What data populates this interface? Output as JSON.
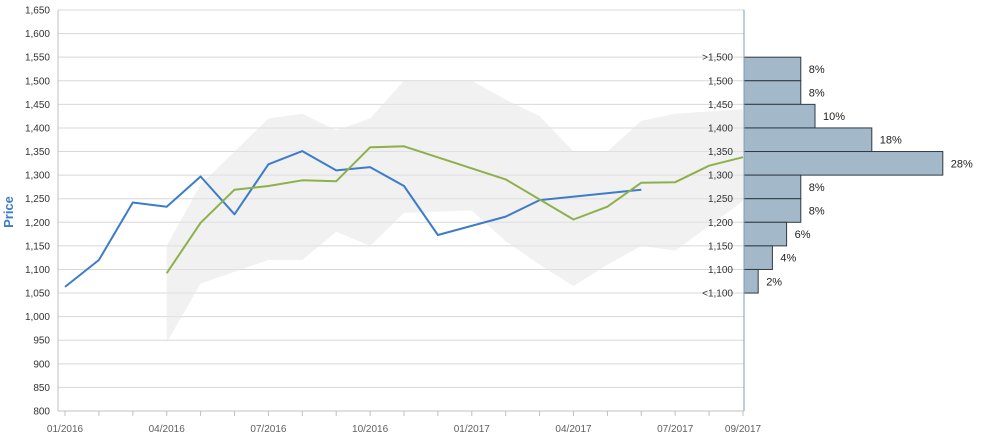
{
  "chart_data": {
    "type": "line",
    "ylabel": "Price",
    "ylim": [
      800,
      1650
    ],
    "y_ticks": [
      "800",
      "850",
      "900",
      "950",
      "1,000",
      "1,050",
      "1,100",
      "1,150",
      "1,200",
      "1,250",
      "1,300",
      "1,350",
      "1,400",
      "1,450",
      "1,500",
      "1,550",
      "1,600",
      "1,650"
    ],
    "x_tick_labels": [
      "01/2016",
      "04/2016",
      "07/2016",
      "10/2016",
      "01/2017",
      "04/2017",
      "07/2017",
      "09/2017"
    ],
    "x_range": [
      "2016-01",
      "2017-09"
    ],
    "grid": true,
    "colors": {
      "series_blue": "#3d7cc9",
      "series_green": "#8db04a",
      "band": "#e6e6e6",
      "histogram": "#a3b8c8",
      "axis_label": "#3d7cc9"
    },
    "band": {
      "x": [
        "2016-04",
        "2016-05",
        "2016-07",
        "2016-08",
        "2016-09",
        "2016-10",
        "2016-11",
        "2017-01",
        "2017-02",
        "2017-03",
        "2017-04",
        "2017-05",
        "2017-06",
        "2017-07",
        "2017-09"
      ],
      "low": [
        945,
        1070,
        1120,
        1120,
        1180,
        1150,
        1220,
        1225,
        1160,
        1110,
        1065,
        1110,
        1150,
        1140,
        1245
      ],
      "high": [
        1150,
        1280,
        1420,
        1430,
        1395,
        1420,
        1500,
        1500,
        1460,
        1425,
        1350,
        1350,
        1415,
        1430,
        1440
      ]
    },
    "series": [
      {
        "x": [
          "2016-01",
          "2016-02",
          "2016-03",
          "2016-04",
          "2016-05",
          "2016-06",
          "2016-07",
          "2016-08",
          "2016-09",
          "2016-10",
          "2016-11",
          "2016-12",
          "2017-02",
          "2017-03",
          "2017-06"
        ],
        "values": [
          1063,
          1120,
          1242,
          1233,
          1297,
          1217,
          1323,
          1351,
          1310,
          1317,
          1277,
          1173,
          1212,
          1247,
          1269
        ]
      },
      {
        "x": [
          "2016-04",
          "2016-05",
          "2016-06",
          "2016-07",
          "2016-08",
          "2016-09",
          "2016-10",
          "2016-11",
          "2017-02",
          "2017-04",
          "2017-05",
          "2017-06",
          "2017-07",
          "2017-08",
          "2017-09"
        ],
        "values": [
          1092,
          1199,
          1269,
          1277,
          1289,
          1287,
          1359,
          1361,
          1291,
          1206,
          1233,
          1284,
          1285,
          1320,
          1338
        ]
      }
    ],
    "histogram": {
      "categories": [
        ">1,500",
        "1,500",
        "1,450",
        "1,400",
        "1,350",
        "1,300",
        "1,250",
        "1,200",
        "1,150",
        "1,100",
        "<1,100"
      ],
      "values": [
        8,
        8,
        10,
        18,
        28,
        8,
        8,
        6,
        4,
        2
      ],
      "labels": [
        "8%",
        "8%",
        "10%",
        "18%",
        "28%",
        "8%",
        "8%",
        "6%",
        "4%",
        "2%"
      ]
    }
  }
}
